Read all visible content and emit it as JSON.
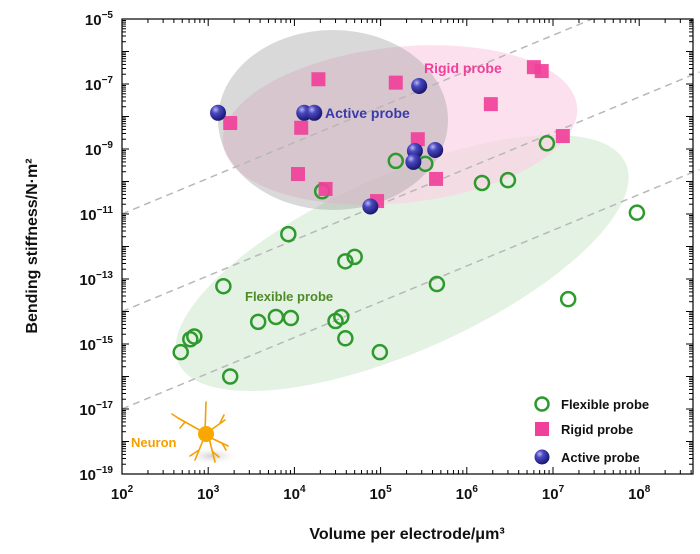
{
  "chart_data": {
    "type": "scatter",
    "title": "",
    "xlabel": "Volume per electrode/μm³",
    "ylabel": "Bending stiffness/N·m²",
    "xscale": "log",
    "yscale": "log",
    "xlim": [
      100.0,
      500000000.0
    ],
    "ylim": [
      1e-19,
      1e-05
    ],
    "x_ticks": [
      {
        "base": "10",
        "exp": "2",
        "value": 100.0
      },
      {
        "base": "10",
        "exp": "3",
        "value": 1000.0
      },
      {
        "base": "10",
        "exp": "4",
        "value": 10000.0
      },
      {
        "base": "10",
        "exp": "5",
        "value": 100000.0
      },
      {
        "base": "10",
        "exp": "6",
        "value": 1000000.0
      },
      {
        "base": "10",
        "exp": "7",
        "value": 10000000.0
      },
      {
        "base": "10",
        "exp": "8",
        "value": 100000000.0
      }
    ],
    "y_ticks": [
      {
        "base": "10",
        "exp": "−5",
        "value": 1e-05
      },
      {
        "base": "10",
        "exp": "−7",
        "value": 1e-07
      },
      {
        "base": "10",
        "exp": "−9",
        "value": 1e-09
      },
      {
        "base": "10",
        "exp": "−11",
        "value": 1e-11
      },
      {
        "base": "10",
        "exp": "−13",
        "value": 1e-13
      },
      {
        "base": "10",
        "exp": "−15",
        "value": 1e-15
      },
      {
        "base": "10",
        "exp": "−17",
        "value": 1e-17
      },
      {
        "base": "10",
        "exp": "−19",
        "value": 1e-19
      }
    ],
    "grid": false,
    "legend_position": "bottom-right",
    "series": [
      {
        "name": "Flexible probe",
        "marker": "open-circle",
        "color": "#2e9a2e",
        "points": [
          [
            8500000.0,
            1.5e-09
          ],
          [
            150000.0,
            4.3e-10
          ],
          [
            330000.0,
            3.5e-10
          ],
          [
            1500000.0,
            9e-11
          ],
          [
            3000000.0,
            1.1e-10
          ],
          [
            21000.0,
            5e-11
          ],
          [
            94000000.0,
            1.1e-11
          ],
          [
            8500.0,
            2.4e-12
          ],
          [
            39000.0,
            3.5e-13
          ],
          [
            50000.0,
            4.8e-13
          ],
          [
            1500.0,
            6e-14
          ],
          [
            450000.0,
            7e-14
          ],
          [
            15000000.0,
            2.4e-14
          ],
          [
            3800.0,
            4.8e-15
          ],
          [
            6100.0,
            6.8e-15
          ],
          [
            9100.0,
            6.3e-15
          ],
          [
            30000.0,
            5.1e-15
          ],
          [
            35000.0,
            6.8e-15
          ],
          [
            39000.0,
            1.5e-15
          ],
          [
            690.0,
            1.7e-15
          ],
          [
            620.0,
            1.4e-15
          ],
          [
            480.0,
            5.6e-16
          ],
          [
            98000.0,
            5.6e-16
          ],
          [
            1800.0,
            1e-16
          ]
        ]
      },
      {
        "name": "Rigid probe",
        "marker": "square",
        "color": "#f0409a",
        "points": [
          [
            19000.0,
            1.4e-07
          ],
          [
            150000.0,
            1.1e-07
          ],
          [
            6000000.0,
            3.3e-07
          ],
          [
            7400000.0,
            2.5e-07
          ],
          [
            1900000.0,
            2.4e-08
          ],
          [
            13000000.0,
            2.5e-09
          ],
          [
            1800.0,
            6.3e-09
          ],
          [
            12000.0,
            4.5e-09
          ],
          [
            270000.0,
            2e-09
          ],
          [
            11000.0,
            1.7e-10
          ],
          [
            23000.0,
            5.9e-11
          ],
          [
            440000.0,
            1.2e-10
          ],
          [
            91000.0,
            2.5e-11
          ]
        ]
      },
      {
        "name": "Active probe",
        "marker": "sphere",
        "color": "#2c2a9c",
        "points": [
          [
            1300.0,
            1.3e-08
          ],
          [
            13000.0,
            1.3e-08
          ],
          [
            17000.0,
            1.3e-08
          ],
          [
            280000.0,
            8.7e-08
          ],
          [
            250000.0,
            8.7e-10
          ],
          [
            430000.0,
            9.3e-10
          ],
          [
            240000.0,
            4e-10
          ],
          [
            76000.0,
            1.7e-11
          ]
        ]
      }
    ],
    "reference_lines": [
      {
        "style": "dashed",
        "from": [
          100.0,
          1e-11
        ],
        "slope_decades": 1.1
      },
      {
        "style": "dashed",
        "from": [
          100.0,
          1e-14
        ],
        "slope_decades": 1.1
      },
      {
        "style": "dashed",
        "from": [
          100.0,
          1e-17
        ],
        "slope_decades": 1.1
      }
    ],
    "annotations": {
      "rigid_region": "Rigid probe",
      "active_region": "Active probe",
      "flexible_region": "Flexible probe",
      "neuron": "Neuron"
    },
    "colors": {
      "flexible": "#2e9a2e",
      "rigid": "#f0409a",
      "active": "#2c2a9c",
      "flexible_label": "#4e8a2a",
      "rigid_label": "#f0409a",
      "active_label": "#3a3aaa",
      "neuron": "#f5a000"
    }
  }
}
